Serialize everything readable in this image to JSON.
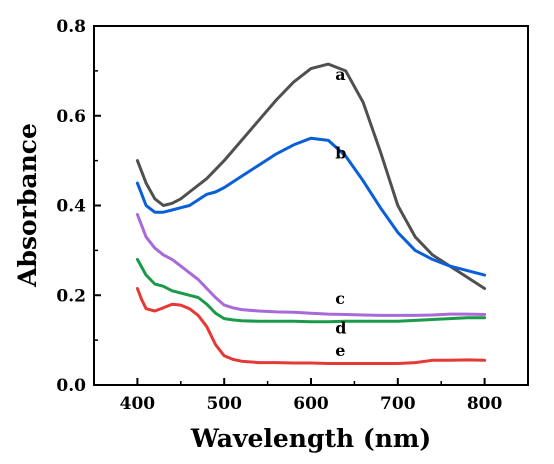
{
  "chart_data": {
    "type": "line",
    "title": "",
    "xlabel": "Wavelength (nm)",
    "ylabel": "Absorbance",
    "xlim": [
      350,
      850
    ],
    "ylim": [
      0.0,
      0.8
    ],
    "xticks": [
      "400",
      "500",
      "600",
      "700",
      "800"
    ],
    "yticks": [
      "0.0",
      "0.2",
      "0.4",
      "0.6",
      "0.8"
    ],
    "grid": false,
    "legend": "none",
    "series": [
      {
        "name": "a",
        "color": "#505050",
        "x": [
          400,
          410,
          420,
          430,
          440,
          450,
          460,
          480,
          500,
          520,
          540,
          560,
          580,
          600,
          620,
          640,
          660,
          680,
          700,
          720,
          740,
          760,
          780,
          800
        ],
        "y": [
          0.5,
          0.45,
          0.415,
          0.4,
          0.405,
          0.415,
          0.43,
          0.46,
          0.5,
          0.545,
          0.59,
          0.635,
          0.675,
          0.705,
          0.715,
          0.7,
          0.63,
          0.52,
          0.4,
          0.33,
          0.29,
          0.265,
          0.24,
          0.215
        ]
      },
      {
        "name": "b",
        "color": "#0a5fd6",
        "x": [
          400,
          410,
          420,
          430,
          440,
          450,
          460,
          480,
          490,
          500,
          520,
          540,
          560,
          580,
          600,
          620,
          640,
          660,
          680,
          700,
          720,
          740,
          760,
          780,
          800
        ],
        "y": [
          0.45,
          0.4,
          0.385,
          0.385,
          0.39,
          0.395,
          0.4,
          0.425,
          0.43,
          0.44,
          0.465,
          0.49,
          0.515,
          0.535,
          0.55,
          0.545,
          0.51,
          0.455,
          0.395,
          0.34,
          0.3,
          0.28,
          0.265,
          0.255,
          0.245
        ]
      },
      {
        "name": "c",
        "color": "#a86ad8",
        "x": [
          400,
          410,
          420,
          430,
          440,
          450,
          460,
          470,
          480,
          490,
          500,
          510,
          520,
          540,
          560,
          580,
          600,
          620,
          640,
          660,
          680,
          700,
          720,
          740,
          760,
          780,
          800
        ],
        "y": [
          0.38,
          0.33,
          0.305,
          0.29,
          0.28,
          0.265,
          0.25,
          0.235,
          0.215,
          0.195,
          0.178,
          0.172,
          0.168,
          0.165,
          0.163,
          0.162,
          0.16,
          0.158,
          0.157,
          0.156,
          0.155,
          0.155,
          0.155,
          0.156,
          0.158,
          0.158,
          0.157
        ]
      },
      {
        "name": "d",
        "color": "#1a9a4a",
        "x": [
          400,
          410,
          420,
          430,
          440,
          450,
          460,
          470,
          480,
          490,
          500,
          510,
          520,
          540,
          560,
          580,
          600,
          620,
          640,
          660,
          680,
          700,
          720,
          740,
          760,
          780,
          800
        ],
        "y": [
          0.28,
          0.245,
          0.225,
          0.22,
          0.21,
          0.205,
          0.2,
          0.195,
          0.18,
          0.16,
          0.148,
          0.145,
          0.143,
          0.142,
          0.142,
          0.142,
          0.141,
          0.141,
          0.142,
          0.142,
          0.142,
          0.142,
          0.144,
          0.146,
          0.148,
          0.15,
          0.15
        ]
      },
      {
        "name": "e",
        "color": "#e53935",
        "x": [
          400,
          405,
          410,
          420,
          430,
          440,
          450,
          460,
          470,
          480,
          490,
          500,
          510,
          520,
          540,
          560,
          580,
          600,
          620,
          640,
          660,
          680,
          700,
          720,
          740,
          760,
          780,
          800
        ],
        "y": [
          0.215,
          0.19,
          0.17,
          0.165,
          0.172,
          0.18,
          0.178,
          0.17,
          0.155,
          0.13,
          0.09,
          0.065,
          0.057,
          0.053,
          0.05,
          0.05,
          0.049,
          0.049,
          0.048,
          0.048,
          0.048,
          0.048,
          0.048,
          0.05,
          0.055,
          0.055,
          0.056,
          0.055
        ]
      }
    ],
    "annotations": [
      {
        "text": "a",
        "x": 628,
        "y": 0.68
      },
      {
        "text": "b",
        "x": 628,
        "y": 0.505
      },
      {
        "text": "c",
        "x": 628,
        "y": 0.18
      },
      {
        "text": "d",
        "x": 628,
        "y": 0.115
      },
      {
        "text": "e",
        "x": 628,
        "y": 0.065
      }
    ]
  }
}
